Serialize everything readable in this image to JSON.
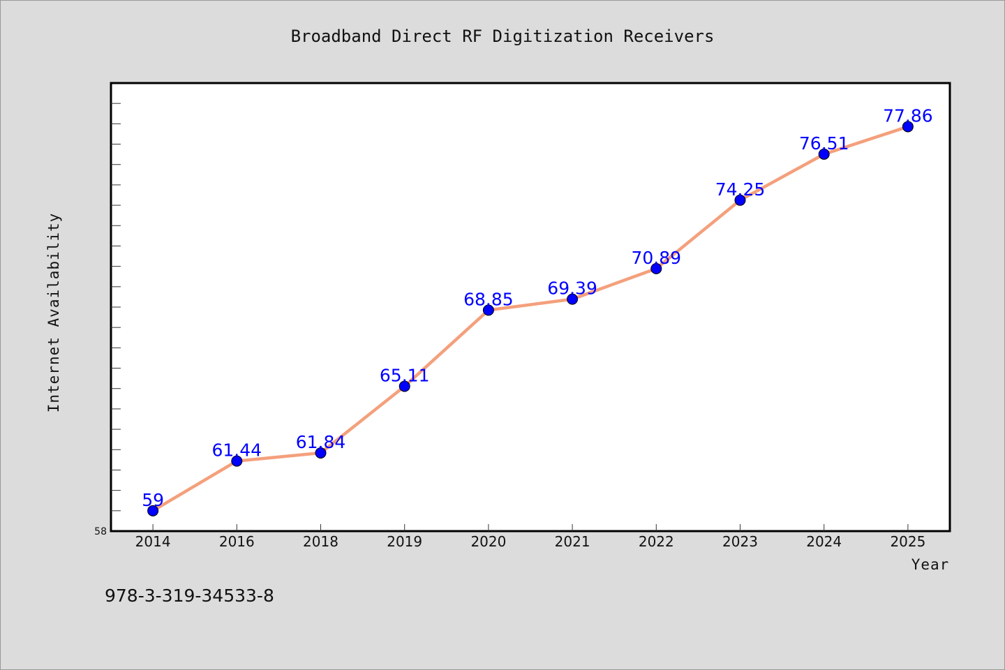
{
  "title": "Broadband Direct RF Digitization Receivers",
  "footnote": "978-3-319-34533-8",
  "colors": {
    "background": "#dcdcdc",
    "plot_background": "#ffffff",
    "line": "#f4a07c",
    "marker": "#0000ff",
    "data_label": "#0000ff"
  },
  "chart_data": {
    "type": "line",
    "categories": [
      "2014",
      "2016",
      "2018",
      "2019",
      "2020",
      "2021",
      "2022",
      "2023",
      "2024",
      "2025"
    ],
    "series": [
      {
        "values": [
          59,
          61.44,
          61.84,
          65.11,
          68.85,
          69.39,
          70.89,
          74.25,
          76.51,
          77.86
        ],
        "data_labels": [
          "59",
          "61.44",
          "61.84",
          "65.11",
          "68.85",
          "69.39",
          "70.89",
          "74.25",
          "76.51",
          "77.86"
        ]
      }
    ],
    "xlabel": "Year",
    "ylabel": "Internet Availability",
    "ylim": [
      58,
      80
    ],
    "yticks_labeled": [
      "58"
    ],
    "grid": false,
    "legend": "none"
  }
}
